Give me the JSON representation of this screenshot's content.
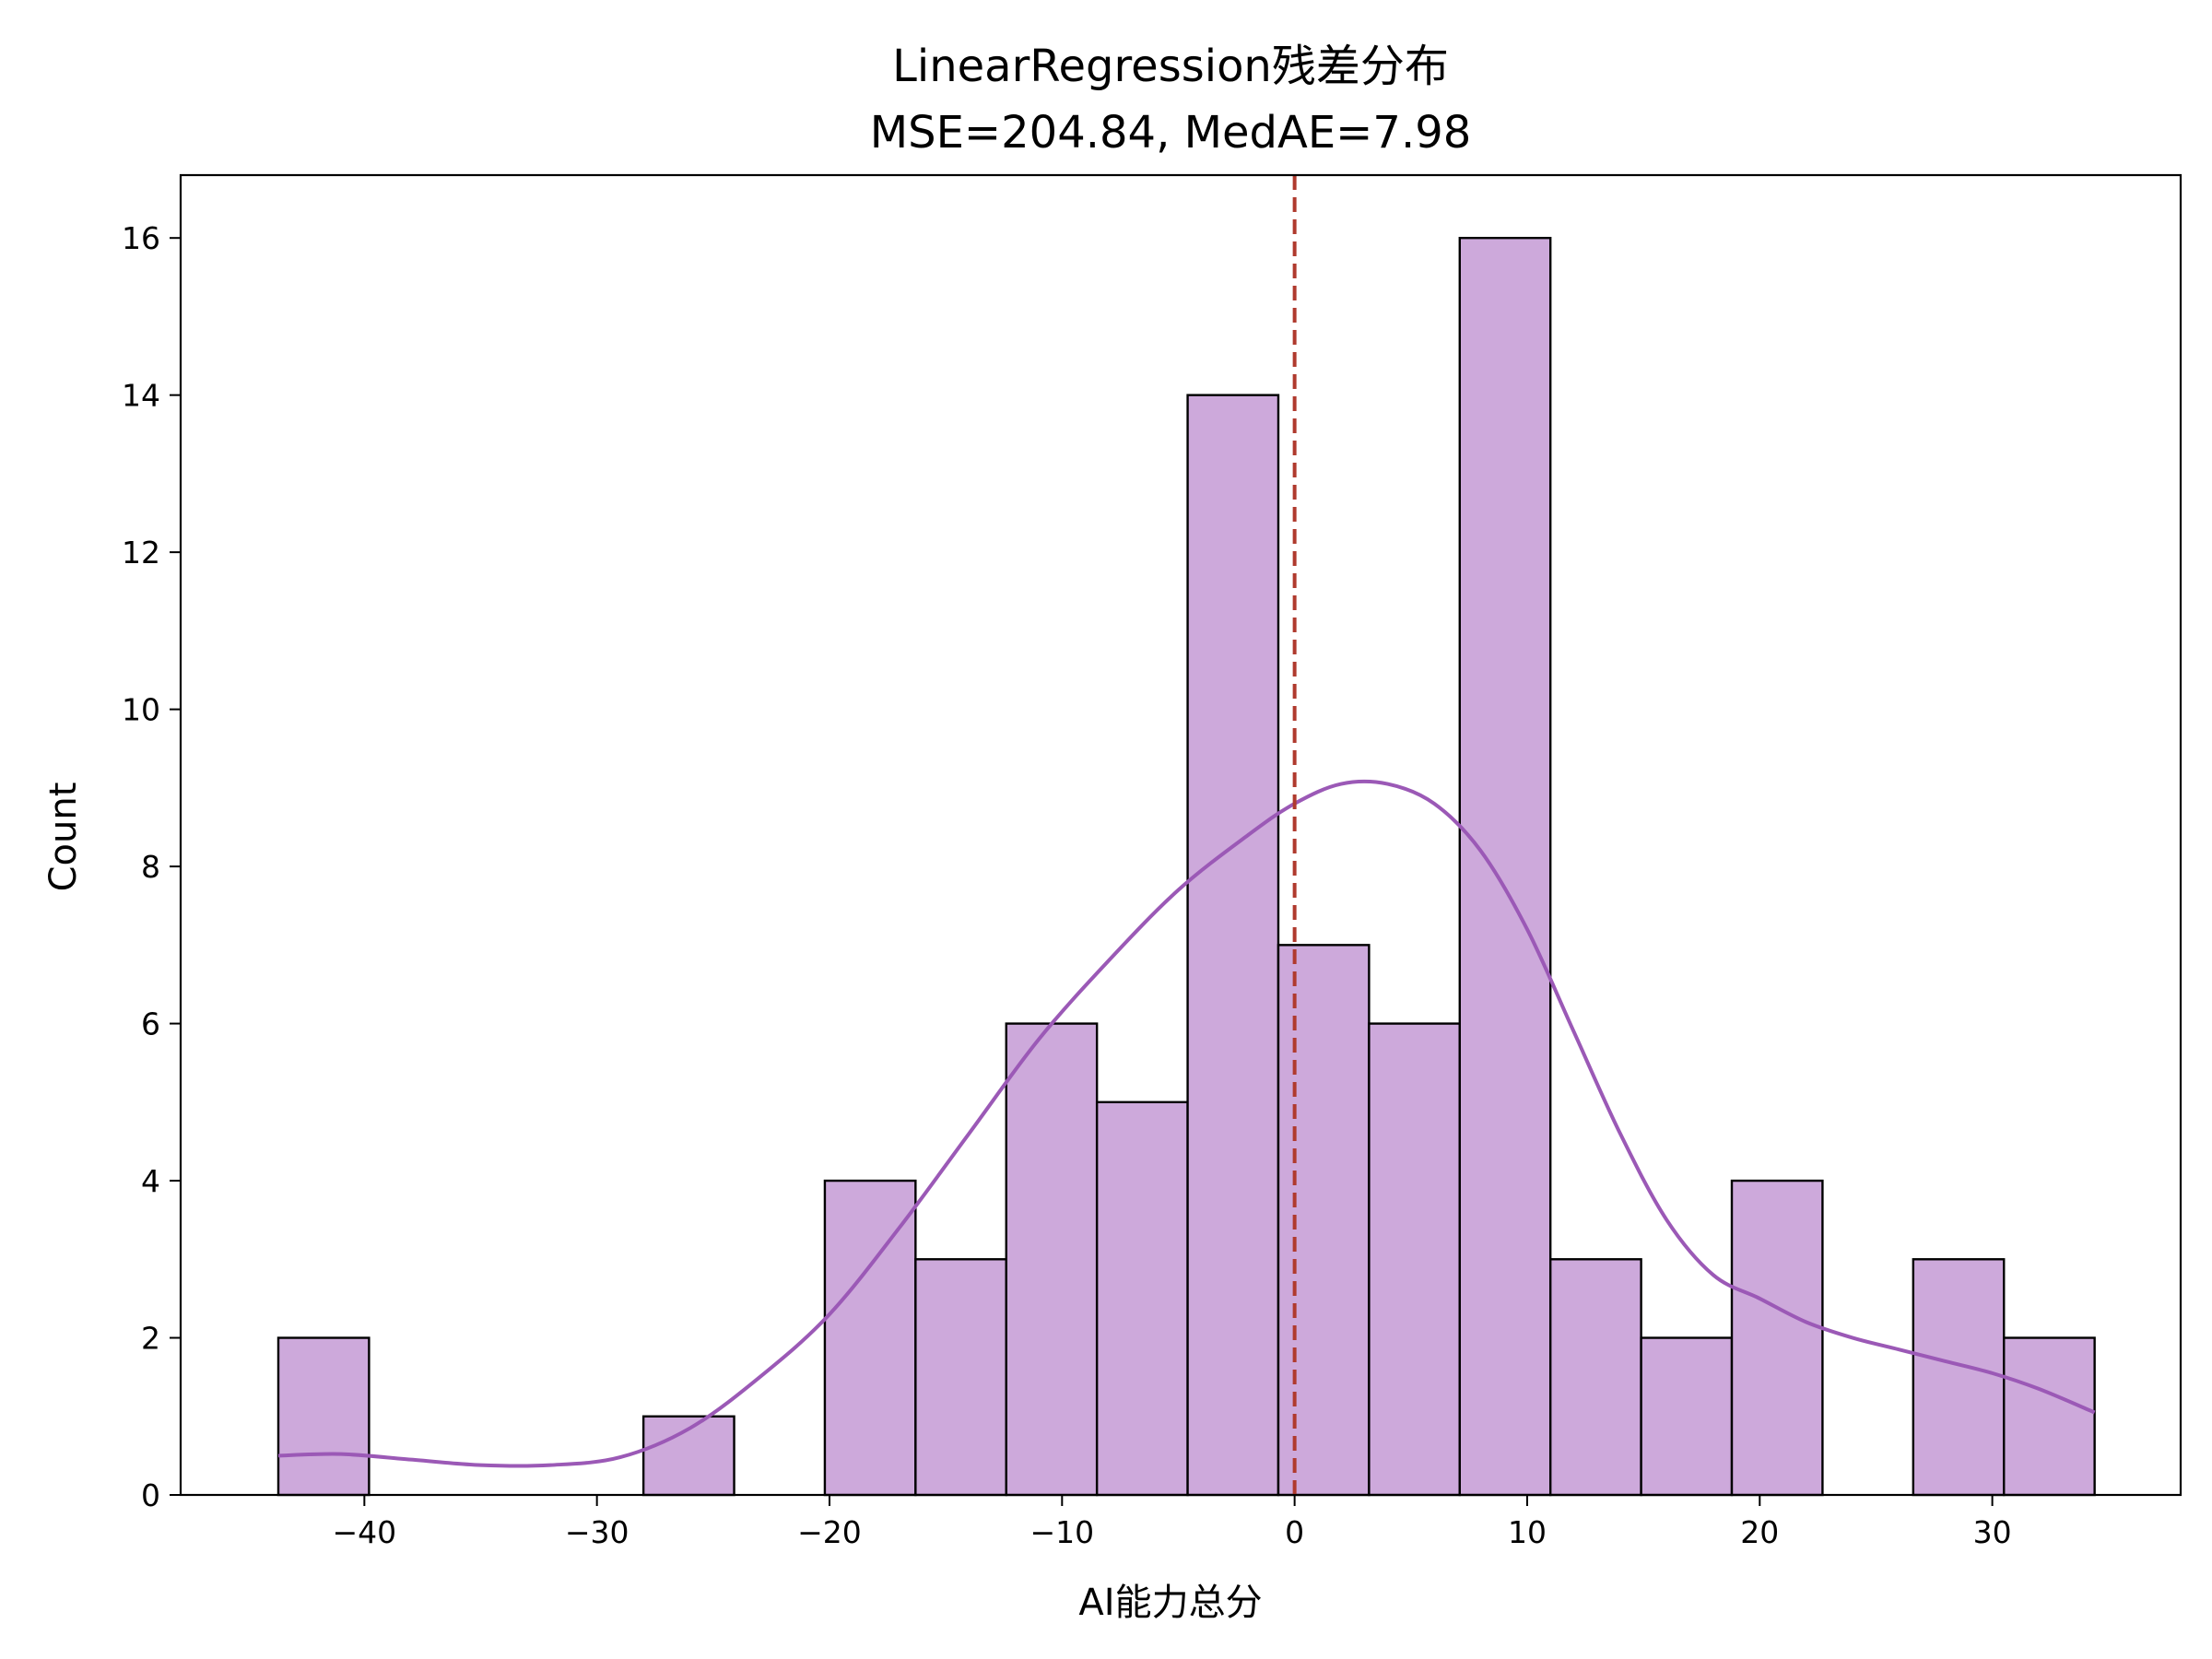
{
  "chart_data": {
    "type": "bar",
    "title": "LinearRegression残差分布",
    "subtitle": "MSE=204.84, MedAE=7.98",
    "xlabel": "AI能力总分",
    "ylabel": "Count",
    "xlim": [
      -47.9,
      38.1
    ],
    "ylim": [
      0,
      16.8
    ],
    "xticks": [
      -40,
      -30,
      -20,
      -10,
      0,
      10,
      20,
      30
    ],
    "xtick_labels": [
      "−40",
      "−30",
      "−20",
      "−10",
      "0",
      "10",
      "20",
      "30"
    ],
    "yticks": [
      0,
      2,
      4,
      6,
      8,
      10,
      12,
      14,
      16
    ],
    "ytick_labels": [
      "0",
      "2",
      "4",
      "6",
      "8",
      "10",
      "12",
      "14",
      "16"
    ],
    "bins": [
      {
        "x0": -43.7,
        "x1": -39.8,
        "count": 2
      },
      {
        "x0": -39.8,
        "x1": -35.9,
        "count": 0
      },
      {
        "x0": -35.9,
        "x1": -32.0,
        "count": 0
      },
      {
        "x0": -32.0,
        "x1": -28.0,
        "count": 0
      },
      {
        "x0": -28.0,
        "x1": -24.1,
        "count": 1
      },
      {
        "x0": -24.1,
        "x1": -20.2,
        "count": 0
      },
      {
        "x0": -20.2,
        "x1": -16.3,
        "count": 4
      },
      {
        "x0": -16.3,
        "x1": -12.4,
        "count": 3
      },
      {
        "x0": -12.4,
        "x1": -8.5,
        "count": 6
      },
      {
        "x0": -8.5,
        "x1": -4.6,
        "count": 5
      },
      {
        "x0": -4.6,
        "x1": -0.7,
        "count": 14
      },
      {
        "x0": -0.7,
        "x1": 3.2,
        "count": 7
      },
      {
        "x0": 3.2,
        "x1": 7.1,
        "count": 6
      },
      {
        "x0": 7.1,
        "x1": 11.0,
        "count": 16
      },
      {
        "x0": 11.0,
        "x1": 14.9,
        "count": 3
      },
      {
        "x0": 14.9,
        "x1": 18.8,
        "count": 2
      },
      {
        "x0": 18.8,
        "x1": 22.7,
        "count": 4
      },
      {
        "x0": 22.7,
        "x1": 26.6,
        "count": 0
      },
      {
        "x0": 26.6,
        "x1": 30.5,
        "count": 3
      },
      {
        "x0": 30.5,
        "x1": 34.4,
        "count": 2
      }
    ],
    "kde": {
      "x": [
        -43.7,
        -41,
        -38,
        -35,
        -32,
        -29,
        -26,
        -23,
        -20,
        -17,
        -14,
        -11,
        -8,
        -5,
        -2,
        0,
        2,
        4,
        6,
        8,
        10,
        12,
        14,
        16,
        18,
        20,
        22,
        24,
        26,
        28,
        30,
        32,
        34.4
      ],
      "y": [
        0.5,
        0.52,
        0.45,
        0.38,
        0.38,
        0.48,
        0.85,
        1.5,
        2.3,
        3.4,
        4.6,
        5.8,
        6.8,
        7.7,
        8.4,
        8.8,
        9.05,
        9.05,
        8.8,
        8.2,
        7.2,
        5.9,
        4.6,
        3.5,
        2.8,
        2.5,
        2.2,
        2.0,
        1.85,
        1.7,
        1.55,
        1.35,
        1.05
      ]
    },
    "reference_line": {
      "x": 0,
      "style": "dashed",
      "color": "#b03a2e"
    },
    "bar_color": "#cda9db",
    "bar_edge_color": "#000000",
    "kde_color": "#9b59b6",
    "grid": false,
    "legend": "none"
  }
}
